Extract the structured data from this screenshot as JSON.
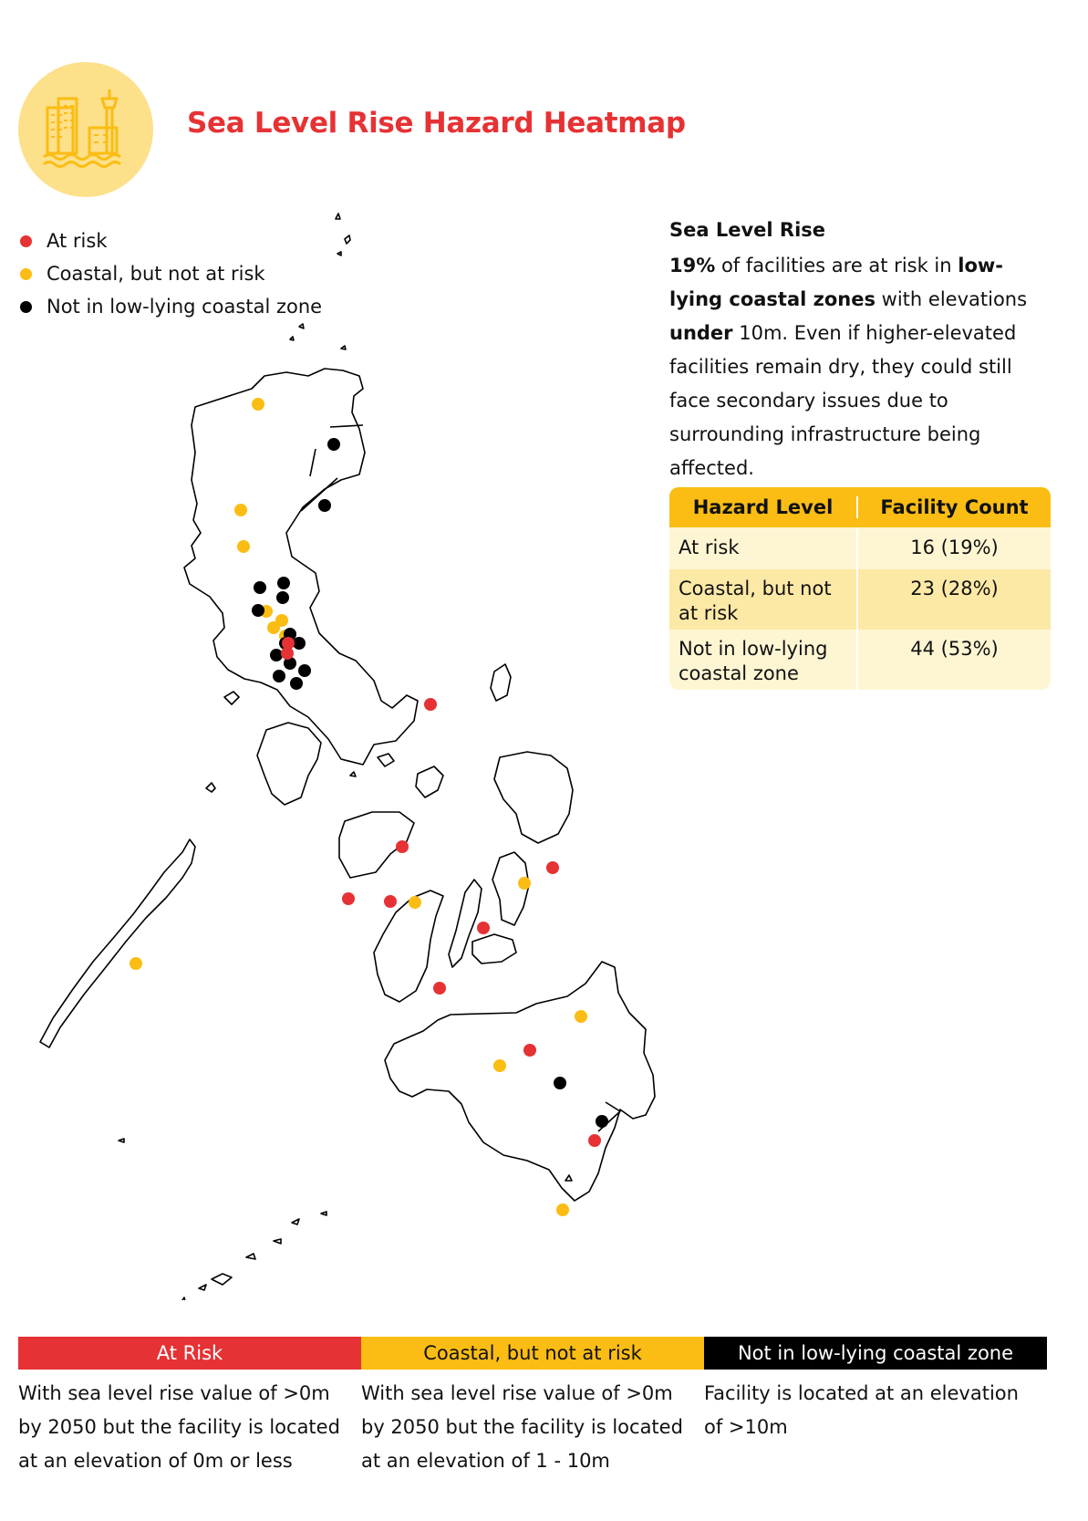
{
  "page": {
    "title": "Sea Level Rise Hazard Heatmap",
    "icon": "coastal-city-icon"
  },
  "colors": {
    "at_risk": "#e63234",
    "coastal": "#fbbd13",
    "not_low_lying": "#000000",
    "title": "#e63234",
    "icon_circle": "#fde08a"
  },
  "legend": [
    {
      "label": "At risk",
      "color": "#e63234"
    },
    {
      "label": "Coastal, but not at risk",
      "color": "#fbbd13"
    },
    {
      "label": "Not in low-lying coastal zone",
      "color": "#000000"
    }
  ],
  "info": {
    "title": "Sea Level Rise",
    "p1_bold": "19%",
    "p1_text": " of facilities are at risk in ",
    "p1_bold2": "low-lying coastal zones",
    "p1_text2": " with elevations ",
    "p1_bold3": "under",
    "p1_text3": " 10m. Even if higher-elevated facilities remain dry, they could still face secondary issues due to surrounding infrastructure being affected."
  },
  "table": {
    "headers": [
      "Hazard Level",
      "Facility Count"
    ],
    "rows": [
      {
        "level": "At risk",
        "count": "16 (19%)"
      },
      {
        "level": "Coastal, but not at risk",
        "count": "23 (28%)"
      },
      {
        "level": "Not in low-lying coastal zone",
        "count": "44 (53%)"
      }
    ]
  },
  "bottom_bands": [
    {
      "label": "At Risk",
      "desc": "With sea level rise value of >0m by 2050 but the facility is located at an elevation of 0m or less"
    },
    {
      "label": "Coastal, but not at risk",
      "desc": "With sea level rise value of >0m by 2050 but the facility is located at an elevation of 1 - 10m"
    },
    {
      "label": "Not in low-lying coastal zone",
      "desc": "Facility is located at an elevation of >10m"
    }
  ]
}
